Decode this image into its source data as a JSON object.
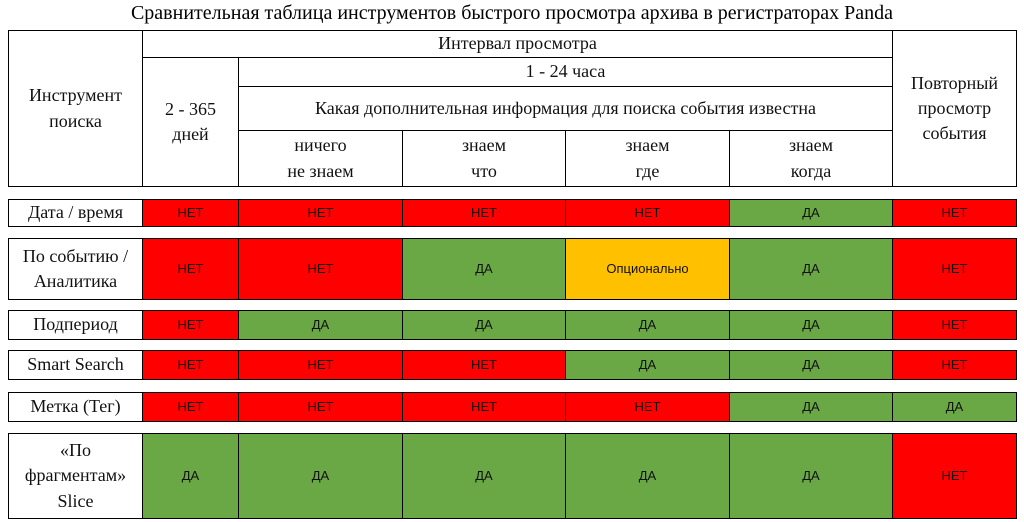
{
  "title": "Сравнительная таблица инструментов быстрого просмотра архива в регистраторах Panda",
  "header": {
    "tool": "Инструмент\nпоиска",
    "interval": "Интервал просмотра",
    "long": "2 - 365\nдней",
    "short": "1 - 24 часа",
    "info": "Какая дополнительная информация для поиска события известна",
    "known": [
      "ничего\nне знаем",
      "знаем\nчто",
      "знаем\nгде",
      "знаем\nкогда"
    ],
    "repeat": "Повторный\nпросмотр\nсобытия"
  },
  "rows": [
    {
      "label": "Дата / время",
      "cells": [
        {
          "text": "НЕТ",
          "color": "#ff0000"
        },
        {
          "text": "НЕТ",
          "color": "#ff0000"
        },
        {
          "text": "НЕТ",
          "color": "#ff0000"
        },
        {
          "text": "НЕТ",
          "color": "#ff0000"
        },
        {
          "text": "ДА",
          "color": "#6aa845"
        },
        {
          "text": "НЕТ",
          "color": "#ff0000"
        }
      ]
    },
    {
      "label": "По событию /\nАналитика",
      "cells": [
        {
          "text": "НЕТ",
          "color": "#ff0000"
        },
        {
          "text": "НЕТ",
          "color": "#ff0000"
        },
        {
          "text": "ДА",
          "color": "#6aa845"
        },
        {
          "text": "Опционально",
          "color": "#ffc000"
        },
        {
          "text": "ДА",
          "color": "#6aa845"
        },
        {
          "text": "НЕТ",
          "color": "#ff0000"
        }
      ]
    },
    {
      "label": "Подпериод",
      "cells": [
        {
          "text": "НЕТ",
          "color": "#ff0000"
        },
        {
          "text": "ДА",
          "color": "#6aa845"
        },
        {
          "text": "ДА",
          "color": "#6aa845"
        },
        {
          "text": "ДА",
          "color": "#6aa845"
        },
        {
          "text": "ДА",
          "color": "#6aa845"
        },
        {
          "text": "НЕТ",
          "color": "#ff0000"
        }
      ]
    },
    {
      "label": "Smart Search",
      "cells": [
        {
          "text": "НЕТ",
          "color": "#ff0000"
        },
        {
          "text": "НЕТ",
          "color": "#ff0000"
        },
        {
          "text": "НЕТ",
          "color": "#ff0000"
        },
        {
          "text": "ДА",
          "color": "#6aa845"
        },
        {
          "text": "ДА",
          "color": "#6aa845"
        },
        {
          "text": "НЕТ",
          "color": "#ff0000"
        }
      ]
    },
    {
      "label": "Метка (Тег)",
      "cells": [
        {
          "text": "НЕТ",
          "color": "#ff0000"
        },
        {
          "text": "НЕТ",
          "color": "#ff0000"
        },
        {
          "text": "НЕТ",
          "color": "#ff0000"
        },
        {
          "text": "НЕТ",
          "color": "#ff0000"
        },
        {
          "text": "ДА",
          "color": "#6aa845"
        },
        {
          "text": "ДА",
          "color": "#6aa845"
        }
      ]
    },
    {
      "label": "«По\nфрагментам»\nSlice",
      "cells": [
        {
          "text": "ДА",
          "color": "#6aa845"
        },
        {
          "text": "ДА",
          "color": "#6aa845"
        },
        {
          "text": "ДА",
          "color": "#6aa845"
        },
        {
          "text": "ДА",
          "color": "#6aa845"
        },
        {
          "text": "ДА",
          "color": "#6aa845"
        },
        {
          "text": "НЕТ",
          "color": "#ff0000"
        }
      ]
    }
  ]
}
